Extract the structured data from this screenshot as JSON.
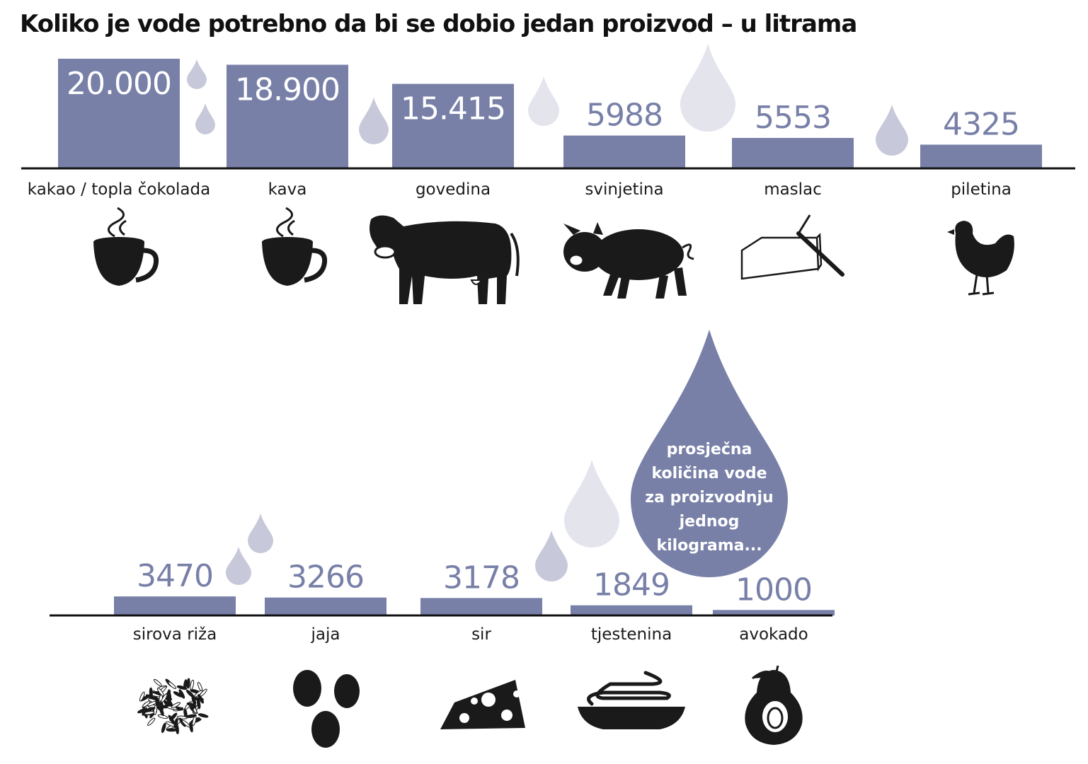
{
  "title": "Koliko je vode potrebno da bi se dobio jedan proizvod – u litrama",
  "annotation": [
    "prosječna",
    "količina vode",
    "za proizvodnju",
    "jednog",
    "kilograma..."
  ],
  "colors": {
    "bar": "#7880a8",
    "drop_light": "#e3e4ec",
    "drop_mid": "#c7c9da",
    "ink": "#1a1a1a"
  },
  "chart_data": [
    {
      "type": "bar",
      "categories": [
        "kakao / topla čokolada",
        "kava",
        "govedina",
        "svinjetina",
        "maslac",
        "piletina"
      ],
      "values": [
        20000,
        18900,
        15415,
        5988,
        5553,
        4325
      ],
      "value_labels": [
        "20.000",
        "18.900",
        "15.415",
        "5988",
        "5553",
        "4325"
      ],
      "icons": [
        "hot-chocolate-icon",
        "coffee-cup-icon",
        "cow-icon",
        "pig-icon",
        "butter-icon",
        "chicken-icon"
      ],
      "ylim": [
        0,
        20000
      ],
      "unit": "litre"
    },
    {
      "type": "bar",
      "categories": [
        "sirova riža",
        "jaja",
        "sir",
        "tjestenina",
        "avokado"
      ],
      "values": [
        3470,
        3266,
        3178,
        1849,
        1000
      ],
      "value_labels": [
        "3470",
        "3266",
        "3178",
        "1849",
        "1000"
      ],
      "icons": [
        "rice-icon",
        "eggs-icon",
        "cheese-icon",
        "pasta-icon",
        "avocado-icon"
      ],
      "ylim": [
        0,
        20000
      ],
      "unit": "litre"
    }
  ]
}
